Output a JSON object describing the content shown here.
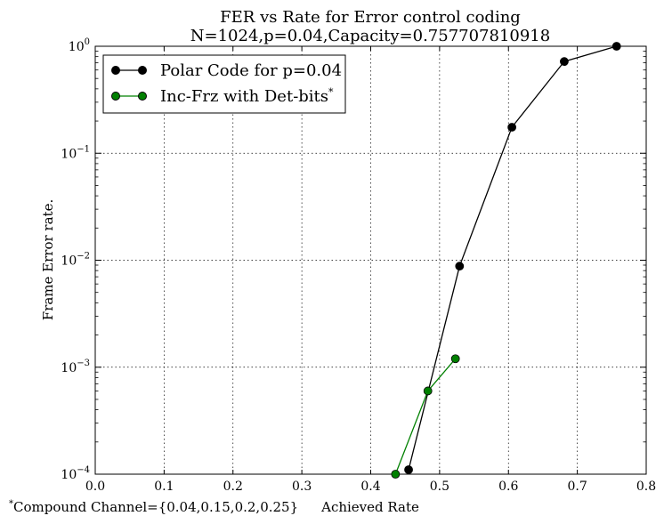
{
  "chart_data": {
    "type": "line",
    "title": "FER vs Rate for Error control coding",
    "subtitle": "N=1024,p=0.04,Capacity=0.757707810918",
    "xlabel": "Achieved Rate",
    "ylabel": "Frame Error rate.",
    "xlim": [
      0.0,
      0.8
    ],
    "ylim": [
      0.0001,
      1
    ],
    "yscale": "log",
    "grid": true,
    "legend_position": "top-left",
    "x_ticks": [
      "0.0",
      "0.1",
      "0.2",
      "0.3",
      "0.4",
      "0.5",
      "0.6",
      "0.7",
      "0.8"
    ],
    "y_ticks": [
      {
        "base": "10",
        "exp": "0",
        "value": 1
      },
      {
        "base": "10",
        "exp": "−1",
        "value": 0.1
      },
      {
        "base": "10",
        "exp": "−2",
        "value": 0.01
      },
      {
        "base": "10",
        "exp": "−3",
        "value": 0.001
      },
      {
        "base": "10",
        "exp": "−4",
        "value": 0.0001
      }
    ],
    "series": [
      {
        "name": "Polar Code for p=0.04",
        "color": "#000000",
        "x": [
          0.455,
          0.529,
          0.605,
          0.681,
          0.757
        ],
        "y": [
          0.00011,
          0.0088,
          0.175,
          0.72,
          1.0
        ]
      },
      {
        "name": "Inc-Frz with Det-bits*",
        "color": "#008000",
        "x": [
          0.436,
          0.483,
          0.523
        ],
        "y": [
          0.0001,
          0.0006,
          0.0012
        ]
      }
    ],
    "footnote": "*Compound Channel={0.04,0.15,0.2,0.25}"
  }
}
